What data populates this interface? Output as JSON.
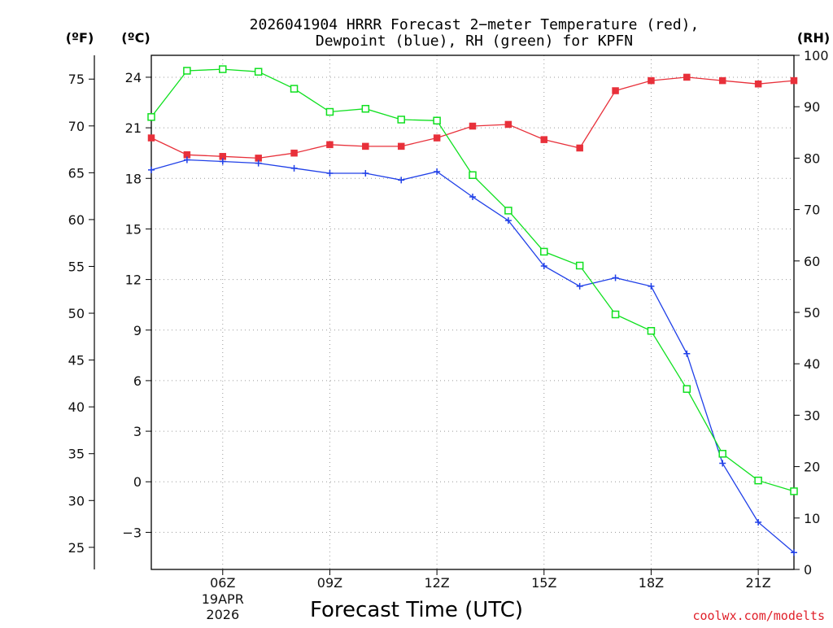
{
  "title_line1": "2026041904 HRRR Forecast 2−meter Temperature (red),",
  "title_line2": "Dewpoint (blue), RH (green) for KPFN",
  "credit": "coolwx.com/modelts",
  "chart_data": {
    "type": "line",
    "title": "2026041904 HRRR Forecast 2−meter Temperature (red), Dewpoint (blue), RH (green) for KPFN",
    "xlabel": "Forecast Time (UTC)",
    "x_hours": [
      4,
      5,
      6,
      7,
      8,
      9,
      10,
      11,
      12,
      13,
      14,
      15,
      16,
      17,
      18,
      19,
      20,
      21,
      22
    ],
    "xlim": [
      4,
      22
    ],
    "x_ticks": [
      {
        "hour": 6,
        "label": "06Z",
        "sub": [
          "19APR",
          "2026"
        ]
      },
      {
        "hour": 9,
        "label": "09Z",
        "sub": []
      },
      {
        "hour": 12,
        "label": "12Z",
        "sub": []
      },
      {
        "hour": 15,
        "label": "15Z",
        "sub": []
      },
      {
        "hour": 18,
        "label": "18Z",
        "sub": []
      },
      {
        "hour": 21,
        "label": "21Z",
        "sub": []
      }
    ],
    "left_axis_c": {
      "unit_label": "(ºC)",
      "ylim": [
        -5.2,
        25.3
      ],
      "ticks": [
        24,
        21,
        18,
        15,
        12,
        9,
        6,
        3,
        0,
        -3
      ]
    },
    "left_axis_f": {
      "unit_label": "(ºF)",
      "ticks": [
        75,
        70,
        65,
        60,
        55,
        50,
        45,
        40,
        35,
        30,
        25
      ]
    },
    "right_axis_rh": {
      "unit_label": "(RH)",
      "ylim": [
        0,
        100
      ],
      "ticks": [
        100,
        90,
        80,
        70,
        60,
        50,
        40,
        30,
        20,
        10,
        0
      ]
    },
    "grid": true,
    "series": [
      {
        "name": "Temperature",
        "axis": "c",
        "color": "#e8303a",
        "marker": "filled-square",
        "values": [
          20.4,
          19.4,
          19.3,
          19.2,
          19.5,
          20.0,
          19.9,
          19.9,
          20.4,
          21.1,
          21.2,
          20.3,
          19.8,
          23.2,
          23.8,
          24.0,
          23.8,
          23.6,
          23.8
        ]
      },
      {
        "name": "Dewpoint",
        "axis": "c",
        "color": "#2040e8",
        "marker": "plus",
        "values": [
          18.5,
          19.1,
          19.0,
          18.9,
          18.6,
          18.3,
          18.3,
          17.9,
          18.4,
          16.9,
          15.5,
          12.8,
          11.6,
          12.1,
          11.6,
          7.6,
          1.1,
          -2.4,
          -4.2
        ]
      },
      {
        "name": "RH",
        "axis": "rh",
        "color": "#10e020",
        "marker": "open-square",
        "values": [
          88,
          97,
          97.3,
          96.8,
          93.5,
          89,
          89.6,
          87.5,
          87.3,
          76.7,
          69.8,
          61.8,
          59.1,
          49.6,
          46.4,
          35.1,
          22.5,
          17.3,
          15.2
        ]
      }
    ]
  }
}
